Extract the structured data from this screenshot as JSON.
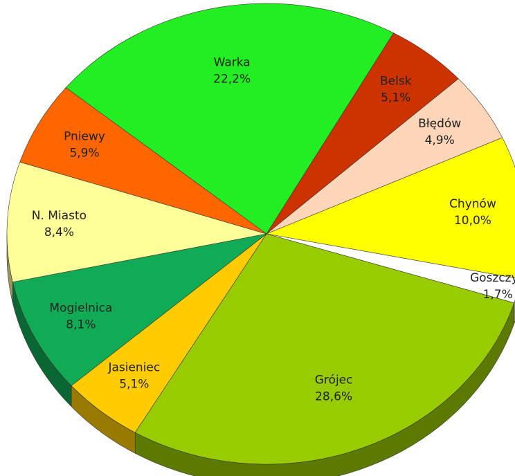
{
  "chart_data": {
    "type": "pie",
    "categories": [
      "Warka",
      "Belsk",
      "Błędów",
      "Chynów",
      "Goszczyn",
      "Grójec",
      "Jasieniec",
      "Mogielnica",
      "N. Miasto",
      "Pniewy"
    ],
    "values": [
      22.2,
      5.1,
      4.9,
      10.0,
      1.7,
      28.6,
      5.1,
      8.1,
      8.4,
      5.9
    ],
    "value_labels": [
      "22,2%",
      "5,1%",
      "4,9%",
      "10,0%",
      "1,7%",
      "28,6%",
      "5,1%",
      "8,1%",
      "8,4%",
      "5,9%"
    ],
    "colors": [
      "#22ee22",
      "#cc3300",
      "#fdd5b8",
      "#ffff00",
      "#ffffff",
      "#99cc00",
      "#ffcc00",
      "#11aa55",
      "#ffff99",
      "#ff6600"
    ]
  }
}
